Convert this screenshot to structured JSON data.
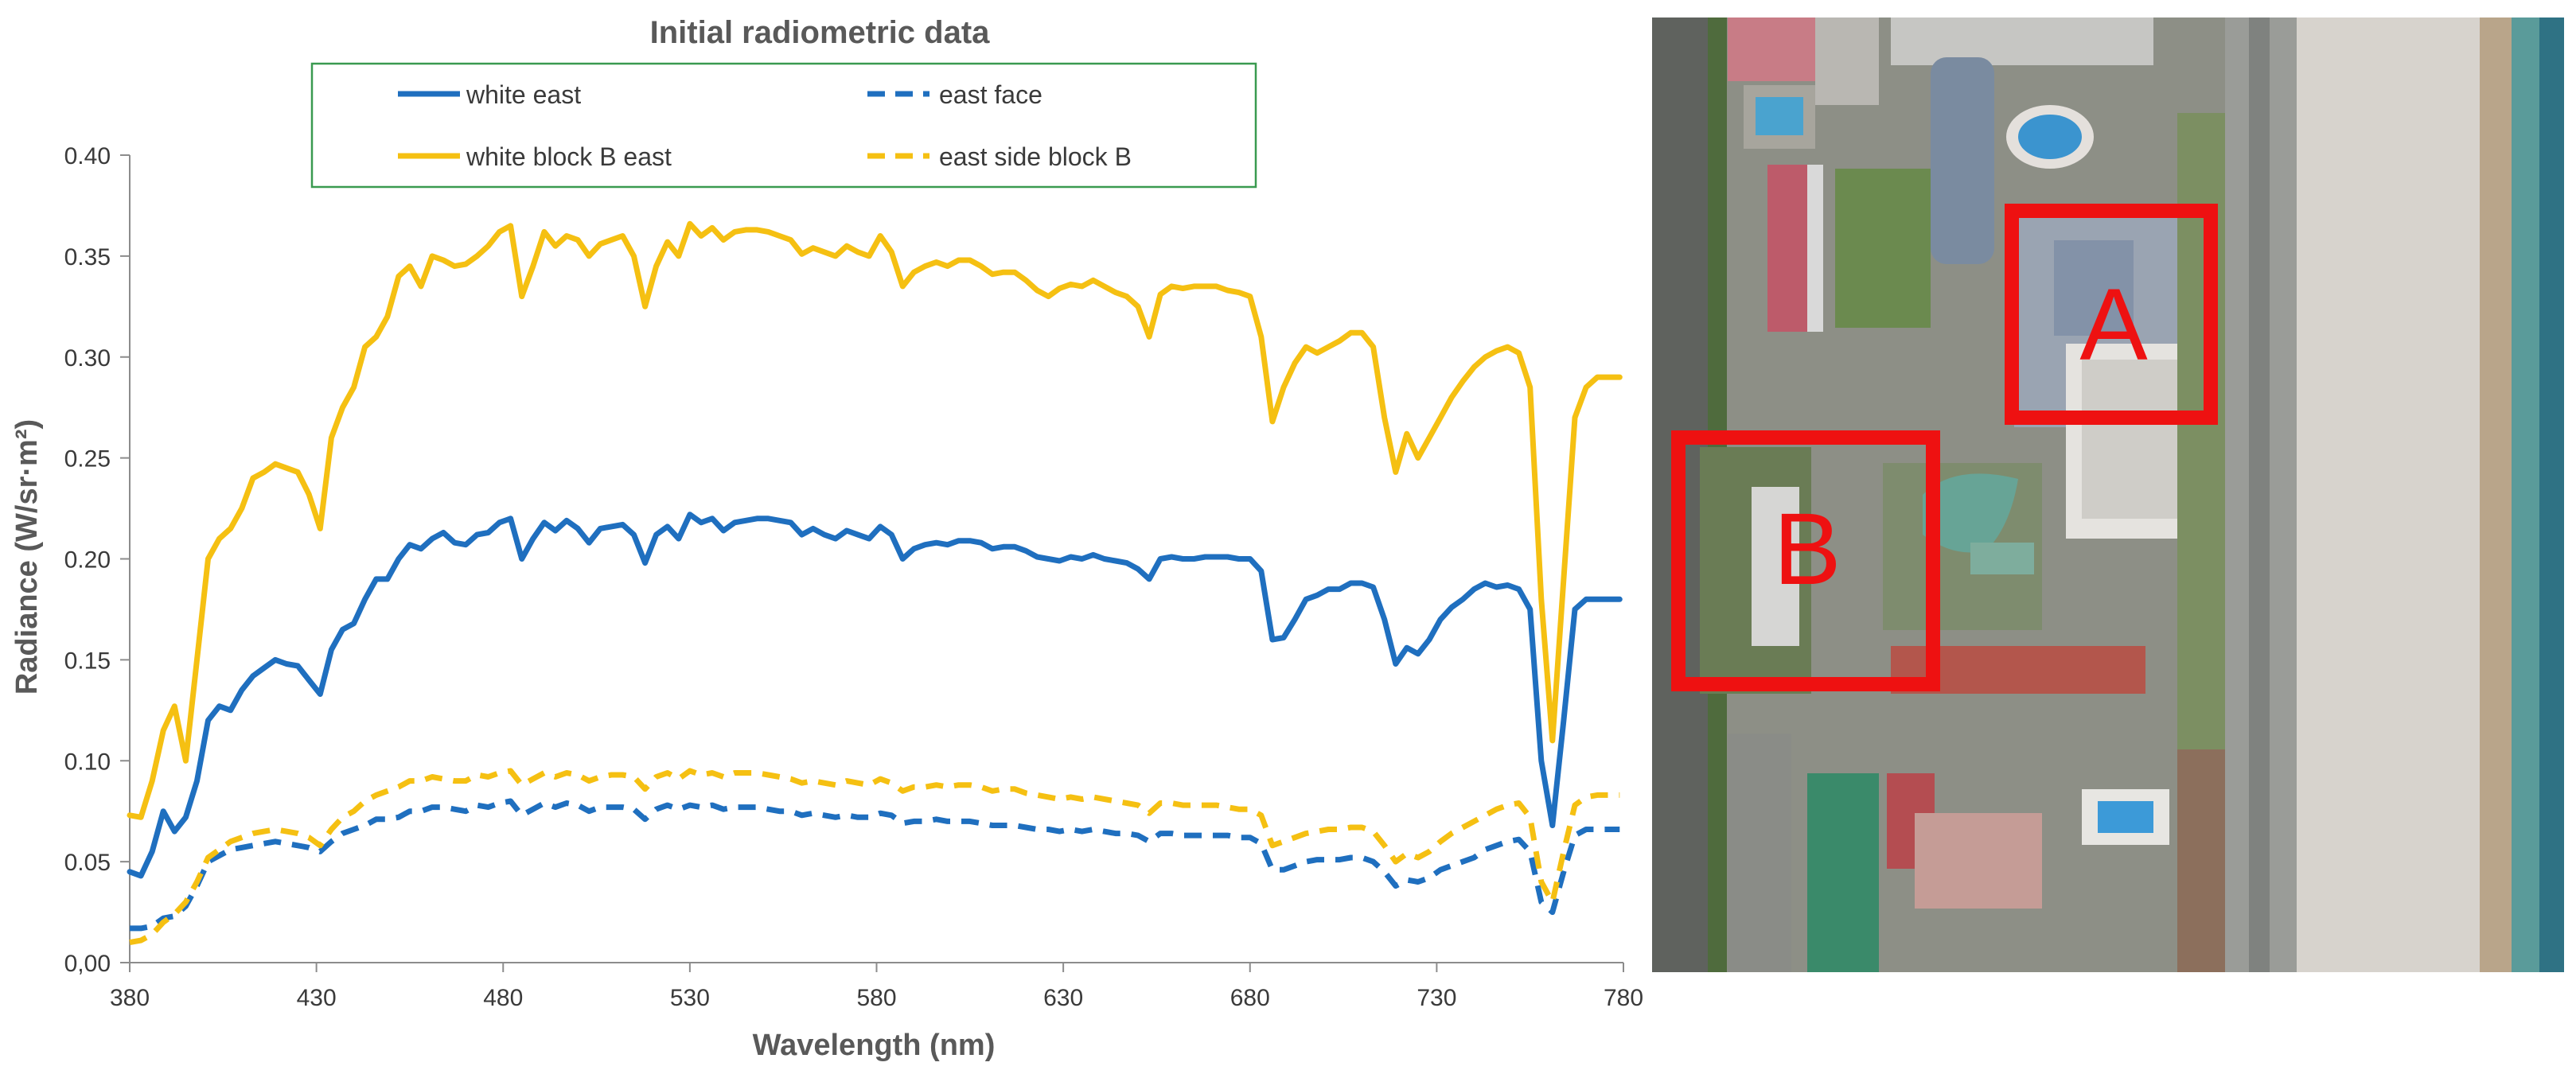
{
  "chart_data": {
    "type": "line",
    "title": "Initial radiometric data",
    "xlabel": "Wavelength (nm)",
    "ylabel": "Radiance  (W/sr·m²)",
    "xlim": [
      380,
      780
    ],
    "ylim": [
      0,
      0.4
    ],
    "x_ticks": [
      380,
      430,
      480,
      530,
      580,
      630,
      680,
      730,
      780
    ],
    "y_ticks": [
      "0,00",
      "0.05",
      "0.10",
      "0.15",
      "0.20",
      "0.25",
      "0.30",
      "0.35",
      "0.40"
    ],
    "grid": false,
    "legend_position": "top",
    "x": [
      380,
      383,
      386,
      389,
      392,
      395,
      398,
      401,
      404,
      407,
      410,
      413,
      416,
      419,
      422,
      425,
      428,
      431,
      434,
      437,
      440,
      443,
      446,
      449,
      452,
      455,
      458,
      461,
      464,
      467,
      470,
      473,
      476,
      479,
      482,
      485,
      488,
      491,
      494,
      497,
      500,
      503,
      506,
      509,
      512,
      515,
      518,
      521,
      524,
      527,
      530,
      533,
      536,
      539,
      542,
      545,
      548,
      551,
      554,
      557,
      560,
      563,
      566,
      569,
      572,
      575,
      578,
      581,
      584,
      587,
      590,
      593,
      596,
      599,
      602,
      605,
      608,
      611,
      614,
      617,
      620,
      623,
      626,
      629,
      632,
      635,
      638,
      641,
      644,
      647,
      650,
      653,
      656,
      659,
      662,
      665,
      668,
      671,
      674,
      677,
      680,
      683,
      686,
      689,
      692,
      695,
      698,
      701,
      704,
      707,
      710,
      713,
      716,
      719,
      722,
      725,
      728,
      731,
      734,
      737,
      740,
      743,
      746,
      749,
      752,
      755,
      758,
      761,
      764,
      767,
      770,
      773,
      776,
      779
    ],
    "series": [
      {
        "name": "white east",
        "color": "#1f6fbf",
        "dash": "solid",
        "values": [
          0.045,
          0.043,
          0.055,
          0.075,
          0.065,
          0.072,
          0.09,
          0.12,
          0.127,
          0.125,
          0.135,
          0.142,
          0.146,
          0.15,
          0.148,
          0.147,
          0.14,
          0.133,
          0.155,
          0.165,
          0.168,
          0.18,
          0.19,
          0.19,
          0.2,
          0.207,
          0.205,
          0.21,
          0.213,
          0.208,
          0.207,
          0.212,
          0.213,
          0.218,
          0.22,
          0.2,
          0.21,
          0.218,
          0.214,
          0.219,
          0.215,
          0.208,
          0.215,
          0.216,
          0.217,
          0.212,
          0.198,
          0.212,
          0.216,
          0.21,
          0.222,
          0.218,
          0.22,
          0.214,
          0.218,
          0.219,
          0.22,
          0.22,
          0.219,
          0.218,
          0.212,
          0.215,
          0.212,
          0.21,
          0.214,
          0.212,
          0.21,
          0.216,
          0.212,
          0.2,
          0.205,
          0.207,
          0.208,
          0.207,
          0.209,
          0.209,
          0.208,
          0.205,
          0.206,
          0.206,
          0.204,
          0.201,
          0.2,
          0.199,
          0.201,
          0.2,
          0.202,
          0.2,
          0.199,
          0.198,
          0.195,
          0.19,
          0.2,
          0.201,
          0.2,
          0.2,
          0.201,
          0.201,
          0.201,
          0.2,
          0.2,
          0.194,
          0.16,
          0.161,
          0.17,
          0.18,
          0.182,
          0.185,
          0.185,
          0.188,
          0.188,
          0.186,
          0.17,
          0.148,
          0.156,
          0.153,
          0.16,
          0.17,
          0.176,
          0.18,
          0.185,
          0.188,
          0.186,
          0.187,
          0.185,
          0.175,
          0.1,
          0.068,
          0.12,
          0.175,
          0.18,
          0.18,
          0.18,
          0.18
        ]
      },
      {
        "name": "east face",
        "color": "#1f6fbf",
        "dash": "dashed",
        "values": [
          0.017,
          0.017,
          0.018,
          0.022,
          0.023,
          0.028,
          0.038,
          0.05,
          0.053,
          0.056,
          0.057,
          0.058,
          0.059,
          0.06,
          0.059,
          0.058,
          0.057,
          0.055,
          0.06,
          0.064,
          0.066,
          0.068,
          0.071,
          0.071,
          0.072,
          0.075,
          0.075,
          0.077,
          0.077,
          0.076,
          0.075,
          0.078,
          0.077,
          0.079,
          0.08,
          0.073,
          0.076,
          0.079,
          0.077,
          0.079,
          0.078,
          0.075,
          0.077,
          0.077,
          0.077,
          0.076,
          0.071,
          0.076,
          0.078,
          0.076,
          0.078,
          0.077,
          0.078,
          0.076,
          0.077,
          0.077,
          0.077,
          0.076,
          0.075,
          0.075,
          0.073,
          0.074,
          0.073,
          0.072,
          0.073,
          0.072,
          0.072,
          0.074,
          0.073,
          0.069,
          0.07,
          0.07,
          0.071,
          0.07,
          0.07,
          0.07,
          0.069,
          0.068,
          0.068,
          0.068,
          0.067,
          0.066,
          0.066,
          0.065,
          0.066,
          0.065,
          0.066,
          0.065,
          0.064,
          0.064,
          0.063,
          0.06,
          0.064,
          0.064,
          0.063,
          0.063,
          0.063,
          0.063,
          0.063,
          0.062,
          0.062,
          0.059,
          0.046,
          0.046,
          0.048,
          0.05,
          0.051,
          0.051,
          0.051,
          0.052,
          0.052,
          0.05,
          0.045,
          0.038,
          0.041,
          0.04,
          0.042,
          0.046,
          0.048,
          0.05,
          0.052,
          0.056,
          0.058,
          0.06,
          0.061,
          0.055,
          0.03,
          0.025,
          0.045,
          0.063,
          0.066,
          0.066,
          0.066,
          0.066
        ]
      },
      {
        "name": "white block B east",
        "color": "#f5c012",
        "dash": "solid",
        "values": [
          0.073,
          0.072,
          0.09,
          0.115,
          0.127,
          0.1,
          0.15,
          0.2,
          0.21,
          0.215,
          0.225,
          0.24,
          0.243,
          0.247,
          0.245,
          0.243,
          0.232,
          0.215,
          0.26,
          0.275,
          0.285,
          0.305,
          0.31,
          0.32,
          0.34,
          0.345,
          0.335,
          0.35,
          0.348,
          0.345,
          0.346,
          0.35,
          0.355,
          0.362,
          0.365,
          0.33,
          0.345,
          0.362,
          0.355,
          0.36,
          0.358,
          0.35,
          0.356,
          0.358,
          0.36,
          0.35,
          0.325,
          0.345,
          0.357,
          0.35,
          0.366,
          0.36,
          0.364,
          0.358,
          0.362,
          0.363,
          0.363,
          0.362,
          0.36,
          0.358,
          0.351,
          0.354,
          0.352,
          0.35,
          0.355,
          0.352,
          0.35,
          0.36,
          0.352,
          0.335,
          0.342,
          0.345,
          0.347,
          0.345,
          0.348,
          0.348,
          0.345,
          0.341,
          0.342,
          0.342,
          0.338,
          0.333,
          0.33,
          0.334,
          0.336,
          0.335,
          0.338,
          0.335,
          0.332,
          0.33,
          0.325,
          0.31,
          0.331,
          0.335,
          0.334,
          0.335,
          0.335,
          0.335,
          0.333,
          0.332,
          0.33,
          0.31,
          0.268,
          0.285,
          0.297,
          0.305,
          0.302,
          0.305,
          0.308,
          0.312,
          0.312,
          0.305,
          0.27,
          0.243,
          0.262,
          0.25,
          0.26,
          0.27,
          0.28,
          0.288,
          0.295,
          0.3,
          0.303,
          0.305,
          0.302,
          0.285,
          0.18,
          0.11,
          0.19,
          0.27,
          0.285,
          0.29,
          0.29,
          0.29
        ]
      },
      {
        "name": "east side block B",
        "color": "#f5c012",
        "dash": "dashed",
        "values": [
          0.01,
          0.011,
          0.014,
          0.02,
          0.024,
          0.03,
          0.04,
          0.052,
          0.056,
          0.06,
          0.062,
          0.064,
          0.065,
          0.066,
          0.065,
          0.064,
          0.062,
          0.058,
          0.066,
          0.072,
          0.075,
          0.08,
          0.083,
          0.085,
          0.087,
          0.09,
          0.09,
          0.092,
          0.091,
          0.09,
          0.09,
          0.093,
          0.092,
          0.094,
          0.095,
          0.088,
          0.091,
          0.094,
          0.092,
          0.094,
          0.093,
          0.09,
          0.092,
          0.093,
          0.093,
          0.092,
          0.086,
          0.092,
          0.094,
          0.091,
          0.095,
          0.093,
          0.094,
          0.092,
          0.094,
          0.094,
          0.094,
          0.093,
          0.092,
          0.091,
          0.089,
          0.09,
          0.089,
          0.088,
          0.09,
          0.089,
          0.088,
          0.091,
          0.089,
          0.085,
          0.087,
          0.087,
          0.088,
          0.087,
          0.088,
          0.088,
          0.087,
          0.085,
          0.086,
          0.086,
          0.084,
          0.083,
          0.082,
          0.081,
          0.082,
          0.081,
          0.082,
          0.081,
          0.08,
          0.079,
          0.078,
          0.074,
          0.079,
          0.079,
          0.078,
          0.078,
          0.078,
          0.078,
          0.077,
          0.076,
          0.076,
          0.073,
          0.058,
          0.06,
          0.062,
          0.064,
          0.065,
          0.066,
          0.066,
          0.067,
          0.067,
          0.065,
          0.058,
          0.05,
          0.054,
          0.052,
          0.055,
          0.06,
          0.064,
          0.067,
          0.07,
          0.073,
          0.076,
          0.078,
          0.079,
          0.072,
          0.04,
          0.03,
          0.055,
          0.078,
          0.082,
          0.083,
          0.083,
          0.083
        ]
      }
    ]
  },
  "photo": {
    "labels": {
      "a": "A",
      "b": "B"
    },
    "highlight_color": "#ee1111"
  }
}
